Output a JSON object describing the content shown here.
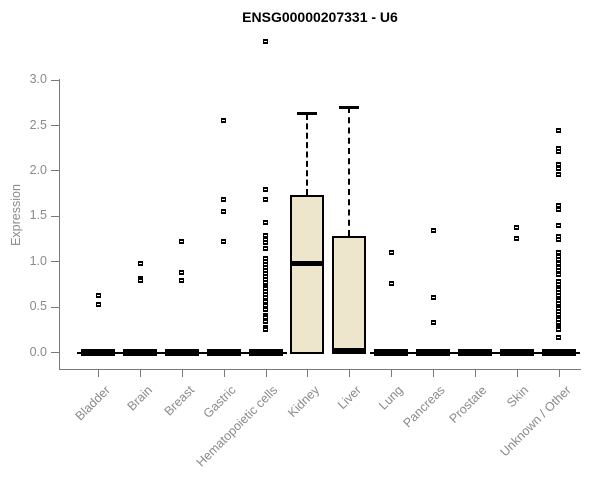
{
  "chart_data": {
    "type": "box",
    "title": "ENSG00000207331 - U6",
    "ylabel": "Expression",
    "ylim": [
      0,
      3.4
    ],
    "yticks": [
      "0.0",
      "0.5",
      "1.0",
      "1.5",
      "2.0",
      "2.5",
      "3.0"
    ],
    "ytick_values": [
      0.0,
      0.5,
      1.0,
      1.5,
      2.0,
      2.5,
      3.0
    ],
    "grid": false,
    "legend": false,
    "box_fill_color": "#ede6cc",
    "axis_text_color": "#8a8a8a",
    "categories": [
      "Bladder",
      "Brain",
      "Breast",
      "Gastric",
      "Hematopoietic cells",
      "Kidney",
      "Liver",
      "Lung",
      "Pancreas",
      "Prostate",
      "Skin",
      "Unknown / Other"
    ],
    "boxes": [
      {
        "category": "Bladder",
        "q1": 0.0,
        "median": 0.0,
        "q3": 0.0,
        "whisker_low": 0.0,
        "whisker_high": 0.0,
        "outliers": [
          0.63,
          0.53
        ]
      },
      {
        "category": "Brain",
        "q1": 0.0,
        "median": 0.0,
        "q3": 0.0,
        "whisker_low": 0.0,
        "whisker_high": 0.0,
        "outliers": [
          0.98,
          0.81,
          0.79
        ]
      },
      {
        "category": "Breast",
        "q1": 0.0,
        "median": 0.0,
        "q3": 0.0,
        "whisker_low": 0.0,
        "whisker_high": 0.0,
        "outliers": [
          1.22,
          0.88,
          0.79
        ]
      },
      {
        "category": "Gastric",
        "q1": 0.0,
        "median": 0.0,
        "q3": 0.0,
        "whisker_low": 0.0,
        "whisker_high": 0.0,
        "outliers": [
          2.56,
          1.69,
          1.55,
          1.22
        ]
      },
      {
        "category": "Hematopoietic cells",
        "q1": 0.0,
        "median": 0.0,
        "q3": 0.0,
        "whisker_low": 0.0,
        "whisker_high": 0.0,
        "outliers": [
          3.42,
          1.8,
          1.69,
          1.43,
          1.29,
          1.25,
          1.21,
          1.15,
          1.04,
          1.0,
          0.97,
          0.94,
          0.9,
          0.87,
          0.84,
          0.8,
          0.77,
          0.73,
          0.7,
          0.67,
          0.64,
          0.61,
          0.56,
          0.52,
          0.47,
          0.41,
          0.38,
          0.34,
          0.28,
          0.25
        ]
      },
      {
        "category": "Kidney",
        "q1": 0.0,
        "median": 0.98,
        "q3": 1.73,
        "whisker_low": 0.0,
        "whisker_high": 2.63,
        "outliers": []
      },
      {
        "category": "Liver",
        "q1": 0.0,
        "median": 0.02,
        "q3": 1.28,
        "whisker_low": 0.0,
        "whisker_high": 2.7,
        "outliers": []
      },
      {
        "category": "Lung",
        "q1": 0.0,
        "median": 0.0,
        "q3": 0.0,
        "whisker_low": 0.0,
        "whisker_high": 0.0,
        "outliers": [
          1.1,
          0.76
        ]
      },
      {
        "category": "Pancreas",
        "q1": 0.0,
        "median": 0.0,
        "q3": 0.0,
        "whisker_low": 0.0,
        "whisker_high": 0.0,
        "outliers": [
          1.34,
          0.61,
          0.33
        ]
      },
      {
        "category": "Prostate",
        "q1": 0.0,
        "median": 0.0,
        "q3": 0.0,
        "whisker_low": 0.0,
        "whisker_high": 0.0,
        "outliers": []
      },
      {
        "category": "Skin",
        "q1": 0.0,
        "median": 0.0,
        "q3": 0.0,
        "whisker_low": 0.0,
        "whisker_high": 0.0,
        "outliers": [
          1.38,
          1.26
        ]
      },
      {
        "category": "Unknown / Other",
        "q1": 0.0,
        "median": 0.0,
        "q3": 0.0,
        "whisker_low": 0.0,
        "whisker_high": 0.0,
        "outliers": [
          2.45,
          2.25,
          2.21,
          2.07,
          2.03,
          1.96,
          1.62,
          1.57,
          1.4,
          1.28,
          1.24,
          1.1,
          1.06,
          1.02,
          0.98,
          0.94,
          0.9,
          0.86,
          0.78,
          0.75,
          0.72,
          0.69,
          0.66,
          0.63,
          0.6,
          0.57,
          0.54,
          0.51,
          0.48,
          0.45,
          0.42,
          0.39,
          0.36,
          0.33,
          0.3,
          0.27,
          0.25,
          0.17
        ]
      }
    ]
  }
}
